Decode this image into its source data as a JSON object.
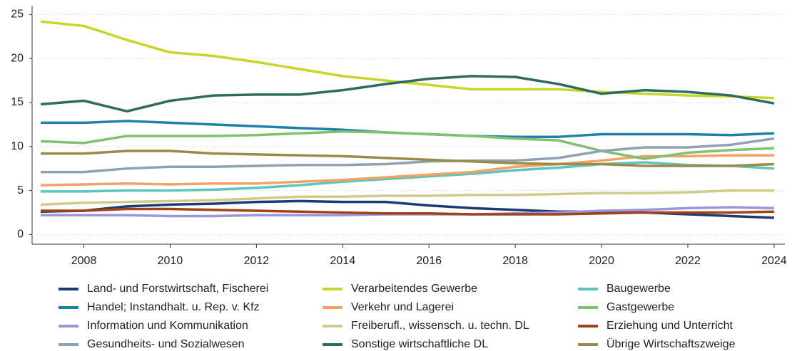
{
  "chart_data": {
    "type": "line",
    "x": [
      2007,
      2008,
      2009,
      2010,
      2011,
      2012,
      2013,
      2014,
      2015,
      2016,
      2017,
      2018,
      2019,
      2020,
      2021,
      2022,
      2023,
      2024
    ],
    "xlim": [
      2006.8,
      2024.25
    ],
    "xticks": [
      2008,
      2010,
      2012,
      2014,
      2016,
      2018,
      2020,
      2022,
      2024
    ],
    "ylim": [
      -1.1,
      26
    ],
    "yticks": [
      0,
      5,
      10,
      15,
      20,
      25
    ],
    "grid": true,
    "legend": "bottom",
    "series": [
      {
        "name": "Land- und Forstwirtschaft, Fischerei",
        "color": "#1d3b73",
        "values": [
          2.6,
          2.7,
          3.2,
          3.4,
          3.5,
          3.7,
          3.8,
          3.7,
          3.7,
          3.3,
          3.0,
          2.8,
          2.6,
          2.6,
          2.5,
          2.3,
          2.1,
          1.9
        ]
      },
      {
        "name": "Verarbeitendes Gewerbe",
        "color": "#c9d52d",
        "values": [
          24.2,
          23.7,
          22.1,
          20.7,
          20.3,
          19.6,
          18.8,
          18.0,
          17.5,
          17.0,
          16.5,
          16.5,
          16.5,
          16.2,
          16.0,
          15.8,
          15.7,
          15.5
        ]
      },
      {
        "name": "Baugewerbe",
        "color": "#5cc5c0",
        "values": [
          4.9,
          4.9,
          5.0,
          5.0,
          5.1,
          5.3,
          5.6,
          6.0,
          6.3,
          6.6,
          6.9,
          7.3,
          7.6,
          8.0,
          8.2,
          7.9,
          7.8,
          7.5
        ]
      },
      {
        "name": "Handel; Instandhalt. u. Rep. v. Kfz",
        "color": "#1f80a9",
        "values": [
          12.7,
          12.7,
          12.9,
          12.7,
          12.5,
          12.3,
          12.1,
          11.9,
          11.6,
          11.4,
          11.2,
          11.1,
          11.1,
          11.4,
          11.4,
          11.4,
          11.3,
          11.5
        ]
      },
      {
        "name": "Verkehr und Lagerei",
        "color": "#f2a263",
        "values": [
          5.6,
          5.7,
          5.8,
          5.7,
          5.8,
          5.8,
          6.0,
          6.2,
          6.5,
          6.8,
          7.1,
          7.7,
          8.0,
          8.4,
          8.9,
          8.9,
          9.0,
          9.0
        ]
      },
      {
        "name": "Gastgewerbe",
        "color": "#80c170",
        "values": [
          10.6,
          10.4,
          11.2,
          11.2,
          11.2,
          11.3,
          11.5,
          11.7,
          11.6,
          11.4,
          11.2,
          10.9,
          10.7,
          9.5,
          8.6,
          9.3,
          9.6,
          9.8
        ]
      },
      {
        "name": "Information und Kommunikation",
        "color": "#9d95d9",
        "values": [
          2.2,
          2.2,
          2.2,
          2.1,
          2.1,
          2.2,
          2.2,
          2.2,
          2.3,
          2.3,
          2.3,
          2.4,
          2.5,
          2.7,
          2.8,
          3.0,
          3.1,
          3.0
        ]
      },
      {
        "name": "Freiberufl., wissensch. u. techn. DL",
        "color": "#d0ca8c",
        "values": [
          3.4,
          3.6,
          3.7,
          3.8,
          3.9,
          4.1,
          4.3,
          4.3,
          4.4,
          4.4,
          4.5,
          4.5,
          4.6,
          4.7,
          4.7,
          4.8,
          5.0,
          5.0
        ]
      },
      {
        "name": "Erziehung und Unterricht",
        "color": "#a2421b",
        "values": [
          2.7,
          2.7,
          2.9,
          2.9,
          2.8,
          2.7,
          2.6,
          2.5,
          2.4,
          2.4,
          2.3,
          2.3,
          2.3,
          2.4,
          2.5,
          2.5,
          2.5,
          2.6
        ]
      },
      {
        "name": "Gesundheits- und Sozialwesen",
        "color": "#8fa1b2",
        "values": [
          7.1,
          7.1,
          7.5,
          7.7,
          7.7,
          7.8,
          7.9,
          7.9,
          8.0,
          8.3,
          8.4,
          8.4,
          8.7,
          9.5,
          9.9,
          9.9,
          10.2,
          10.9
        ]
      },
      {
        "name": "Sonstige wirtschaftliche DL",
        "color": "#2f6c5f",
        "values": [
          14.8,
          15.2,
          14.0,
          15.2,
          15.8,
          15.9,
          15.9,
          16.4,
          17.1,
          17.7,
          18.0,
          17.9,
          17.1,
          16.0,
          16.4,
          16.2,
          15.8,
          14.9
        ]
      },
      {
        "name": "Übrige Wirtschaftszweige",
        "color": "#9b8b4b",
        "values": [
          9.2,
          9.2,
          9.5,
          9.5,
          9.2,
          9.1,
          9.0,
          8.9,
          8.7,
          8.5,
          8.3,
          8.1,
          8.0,
          8.0,
          7.8,
          7.8,
          7.8,
          8.0
        ]
      }
    ]
  }
}
